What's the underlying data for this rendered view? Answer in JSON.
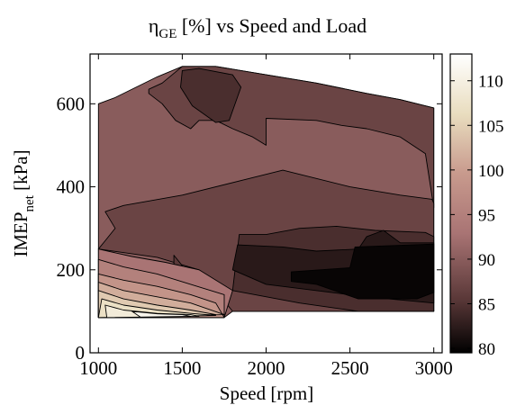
{
  "chart_data": {
    "type": "contour",
    "title": {
      "symbol": "η",
      "sub": "GE",
      "rest": " [%] vs Speed and Load"
    },
    "xlabel": "Speed   [rpm]",
    "ylabel": {
      "main": "IMEP",
      "sub": "net",
      "rest": "   [kPa]"
    },
    "xlim": [
      950,
      3050
    ],
    "ylim": [
      0,
      720
    ],
    "xticks": [
      1000,
      1500,
      2000,
      2500,
      3000
    ],
    "yticks": [
      0,
      200,
      400,
      600
    ],
    "colorbar": {
      "range": [
        79.5,
        113
      ],
      "ticks": [
        80,
        85,
        90,
        95,
        100,
        105,
        110
      ]
    },
    "contour_levels": [
      80,
      82,
      84,
      86,
      88,
      90,
      92,
      94,
      96,
      98,
      100,
      102,
      104,
      106,
      108,
      110,
      112
    ],
    "colors": {
      "low": "#000000",
      "mid_low": "#5a3838",
      "mid": "#a97474",
      "mid_high": "#d6b7a6",
      "high": "#f2eed3",
      "top": "#ffffff"
    },
    "regions": [
      {
        "value": 88,
        "pts": [
          [
            1000,
            600
          ],
          [
            1100,
            615
          ],
          [
            1350,
            665
          ],
          [
            1500,
            690
          ],
          [
            1700,
            690
          ],
          [
            2000,
            670
          ],
          [
            2300,
            650
          ],
          [
            2600,
            625
          ],
          [
            2800,
            610
          ],
          [
            3000,
            590
          ],
          [
            3000,
            100
          ],
          [
            2550,
            100
          ],
          [
            1800,
            100
          ],
          [
            1750,
            85
          ],
          [
            1000,
            85
          ]
        ]
      },
      {
        "value": 86,
        "pts": [
          [
            1300,
            635
          ],
          [
            1380,
            650
          ],
          [
            1500,
            690
          ],
          [
            1700,
            690
          ],
          [
            2000,
            670
          ],
          [
            2300,
            650
          ],
          [
            2600,
            625
          ],
          [
            2800,
            610
          ],
          [
            3000,
            590
          ],
          [
            3000,
            350
          ],
          [
            2950,
            480
          ],
          [
            2800,
            520
          ],
          [
            2600,
            540
          ],
          [
            2450,
            548
          ],
          [
            2300,
            560
          ],
          [
            2000,
            565
          ],
          [
            2000,
            500
          ],
          [
            1920,
            520
          ],
          [
            1800,
            540
          ],
          [
            1700,
            560
          ],
          [
            1600,
            560
          ],
          [
            1550,
            540
          ],
          [
            1460,
            560
          ],
          [
            1380,
            600
          ],
          [
            1300,
            625
          ]
        ]
      },
      {
        "value": 84,
        "pts": [
          [
            1500,
            680
          ],
          [
            1600,
            685
          ],
          [
            1800,
            670
          ],
          [
            1850,
            640
          ],
          [
            1780,
            560
          ],
          [
            1700,
            555
          ],
          [
            1560,
            595
          ],
          [
            1490,
            640
          ]
        ]
      },
      {
        "value": 86,
        "pts": [
          [
            1040,
            340
          ],
          [
            1150,
            355
          ],
          [
            1500,
            380
          ],
          [
            1900,
            420
          ],
          [
            2100,
            440
          ],
          [
            2200,
            430
          ],
          [
            2500,
            400
          ],
          [
            2800,
            380
          ],
          [
            2990,
            370
          ],
          [
            3000,
            360
          ],
          [
            3000,
            100
          ],
          [
            2550,
            100
          ],
          [
            1800,
            100
          ],
          [
            1600,
            200
          ],
          [
            1350,
            230
          ],
          [
            1000,
            250
          ],
          [
            1040,
            270
          ],
          [
            1100,
            300
          ]
        ]
      },
      {
        "value": 84,
        "pts": [
          [
            1840,
            285
          ],
          [
            2000,
            285
          ],
          [
            2200,
            300
          ],
          [
            2420,
            305
          ],
          [
            2650,
            295
          ],
          [
            2950,
            290
          ],
          [
            3000,
            280
          ],
          [
            3000,
            100
          ],
          [
            2550,
            100
          ],
          [
            2200,
            120
          ],
          [
            1800,
            150
          ]
        ]
      },
      {
        "value": 82,
        "pts": [
          [
            1830,
            260
          ],
          [
            2100,
            255
          ],
          [
            2300,
            245
          ],
          [
            2550,
            250
          ],
          [
            2600,
            280
          ],
          [
            2700,
            295
          ],
          [
            2800,
            265
          ],
          [
            3000,
            265
          ],
          [
            3000,
            120
          ],
          [
            2600,
            135
          ],
          [
            2000,
            165
          ],
          [
            1800,
            200
          ]
        ]
      },
      {
        "value": 80,
        "pts": [
          [
            2150,
            195
          ],
          [
            2500,
            205
          ],
          [
            2530,
            255
          ],
          [
            3000,
            262
          ],
          [
            3000,
            145
          ],
          [
            2900,
            130
          ],
          [
            2550,
            130
          ],
          [
            2300,
            165
          ],
          [
            2150,
            172
          ]
        ]
      },
      {
        "value": 85,
        "pts": [
          [
            1450,
            235
          ],
          [
            1520,
            200
          ],
          [
            1580,
            160
          ],
          [
            1480,
            165
          ],
          [
            1450,
            195
          ]
        ]
      },
      {
        "value": 90,
        "pts": [
          [
            1000,
            250
          ],
          [
            1200,
            232
          ],
          [
            1400,
            218
          ],
          [
            1600,
            200
          ],
          [
            1800,
            150
          ],
          [
            1750,
            85
          ],
          [
            1000,
            85
          ]
        ]
      },
      {
        "value": 92,
        "pts": [
          [
            1000,
            225
          ],
          [
            1150,
            207
          ],
          [
            1350,
            190
          ],
          [
            1550,
            165
          ],
          [
            1750,
            140
          ],
          [
            1750,
            85
          ],
          [
            1000,
            85
          ]
        ]
      },
      {
        "value": 95,
        "pts": [
          [
            1000,
            190
          ],
          [
            1150,
            175
          ],
          [
            1350,
            160
          ],
          [
            1550,
            140
          ],
          [
            1700,
            120
          ],
          [
            1750,
            85
          ],
          [
            1000,
            85
          ]
        ]
      },
      {
        "value": 98,
        "pts": [
          [
            1000,
            170
          ],
          [
            1150,
            150
          ],
          [
            1350,
            135
          ],
          [
            1550,
            120
          ],
          [
            1750,
            92
          ],
          [
            1000,
            85
          ]
        ]
      },
      {
        "value": 101,
        "pts": [
          [
            1000,
            150
          ],
          [
            1150,
            130
          ],
          [
            1350,
            115
          ],
          [
            1550,
            103
          ],
          [
            1700,
            92
          ],
          [
            1000,
            85
          ]
        ]
      },
      {
        "value": 104,
        "pts": [
          [
            1020,
            130
          ],
          [
            1150,
            115
          ],
          [
            1350,
            103
          ],
          [
            1550,
            95
          ],
          [
            1700,
            90
          ],
          [
            1000,
            85
          ]
        ]
      },
      {
        "value": 107,
        "pts": [
          [
            1040,
            115
          ],
          [
            1150,
            103
          ],
          [
            1350,
            95
          ],
          [
            1550,
            92
          ],
          [
            1600,
            88
          ],
          [
            1050,
            85
          ]
        ]
      },
      {
        "value": 110,
        "pts": [
          [
            1200,
            100
          ],
          [
            1350,
            94
          ],
          [
            1500,
            92
          ],
          [
            1550,
            88
          ],
          [
            1250,
            86
          ]
        ]
      }
    ]
  }
}
